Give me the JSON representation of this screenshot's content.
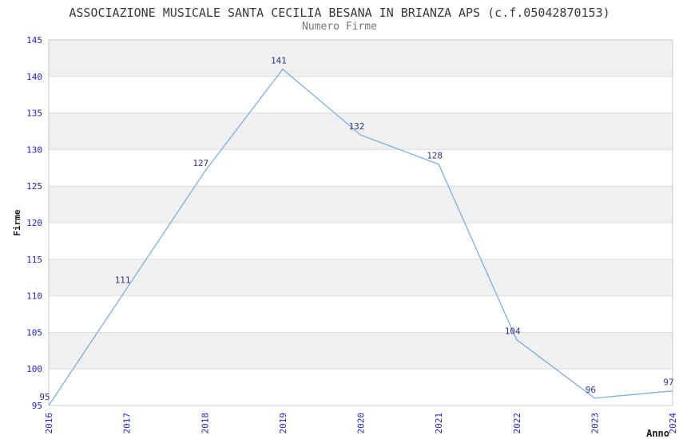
{
  "header": {
    "title": "ASSOCIAZIONE MUSICALE SANTA CECILIA BESANA IN BRIANZA APS (c.f.05042870153)",
    "subtitle": "Numero Firme"
  },
  "chart_data": {
    "type": "line",
    "title": "ASSOCIAZIONE MUSICALE SANTA CECILIA BESANA IN BRIANZA APS (c.f.05042870153)",
    "subtitle": "Numero Firme",
    "xlabel": "Anno",
    "ylabel": "Firme",
    "categories": [
      "2016",
      "2017",
      "2018",
      "2019",
      "2020",
      "2021",
      "2022",
      "2023",
      "2024"
    ],
    "values": [
      95,
      111,
      127,
      141,
      132,
      128,
      104,
      96,
      97
    ],
    "ylim": [
      95,
      145
    ],
    "ytick_step": 5,
    "grid": true,
    "legend_position": "none",
    "data_labels_visible": true,
    "colors": {
      "line": "#7FACE2",
      "tick_label": "#2323cc",
      "data_label": "#32328c",
      "band": "#f0f0f0",
      "grid_line": "#dcdcdc",
      "plot_border": "#c8c8c8",
      "axis_title": "#1a1a1a",
      "title": "#3a3a3a",
      "subtitle": "#757575"
    }
  }
}
